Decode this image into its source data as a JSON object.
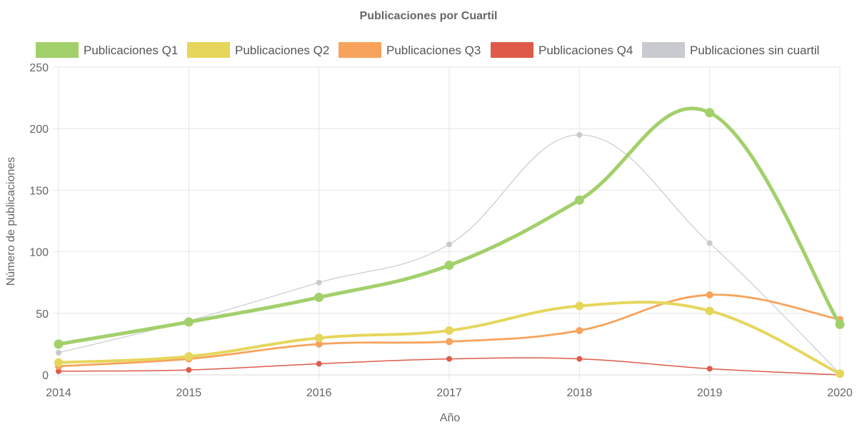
{
  "chart_data": {
    "type": "line",
    "title": "Publicaciones por Cuartil",
    "xlabel": "Año",
    "ylabel": "Número de publicaciones",
    "x": [
      "2014",
      "2015",
      "2016",
      "2017",
      "2018",
      "2019",
      "2020"
    ],
    "ylim": [
      0,
      250
    ],
    "yticks": [
      0,
      50,
      100,
      150,
      200,
      250
    ],
    "grid": true,
    "legend_position": "top",
    "series": [
      {
        "name": "Publicaciones Q1",
        "color": "#a2d06b",
        "values": [
          25,
          43,
          63,
          89,
          142,
          213,
          41
        ]
      },
      {
        "name": "Publicaciones Q2",
        "color": "#e6d65c",
        "values": [
          10,
          15,
          30,
          36,
          56,
          52,
          1
        ]
      },
      {
        "name": "Publicaciones Q3",
        "color": "#f7a35c",
        "values": [
          7,
          13,
          25,
          27,
          36,
          65,
          45
        ]
      },
      {
        "name": "Publicaciones Q4",
        "color": "#de5b4a",
        "values": [
          3,
          4,
          9,
          13,
          13,
          5,
          0
        ]
      },
      {
        "name": "Publicaciones sin cuartil",
        "color": "#c9cacf",
        "values": [
          18,
          44,
          75,
          106,
          195,
          107,
          1
        ]
      }
    ]
  }
}
